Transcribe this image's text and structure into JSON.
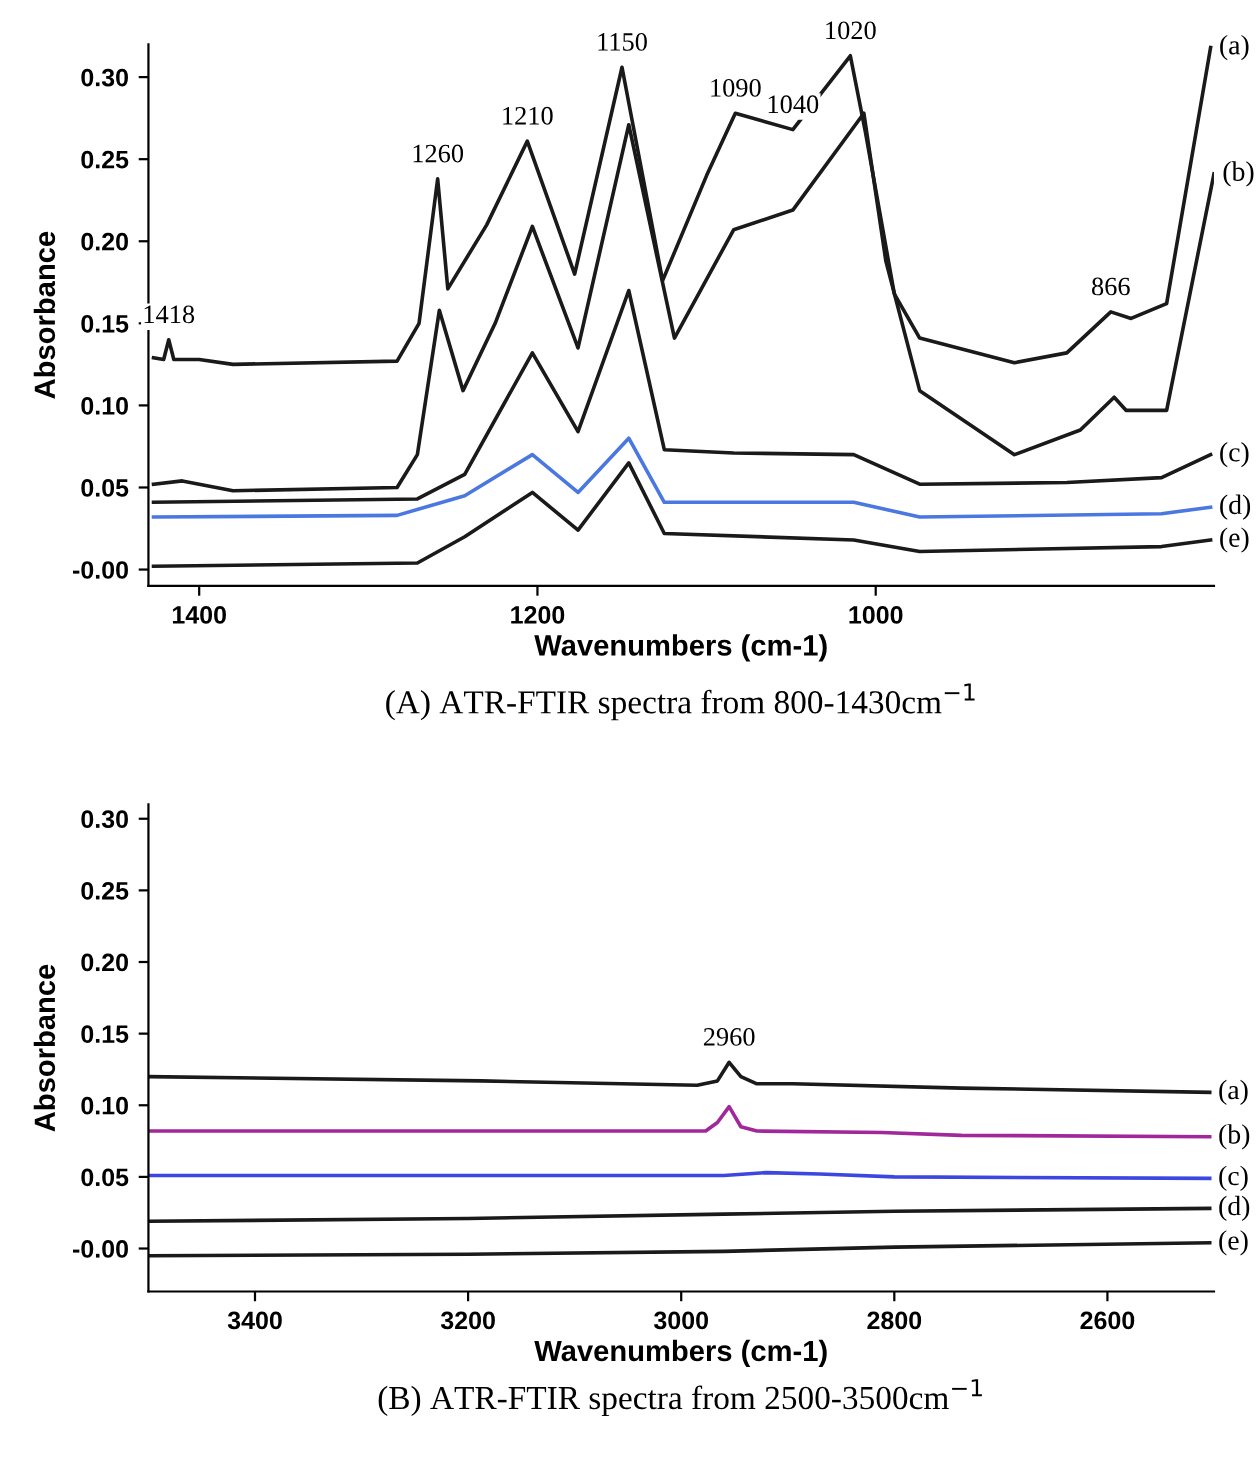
{
  "chart_data": [
    {
      "type": "line",
      "xlabel": "Wavenumbers (cm-1)",
      "ylabel": "Absorbance",
      "title": "(A) ATR-FTIR spectra from 800-1430cm$^{−1}$",
      "xlim": [
        1430,
        800
      ],
      "ylim": [
        -0.01,
        0.32
      ],
      "xticks": [
        1400,
        1200,
        1000
      ],
      "yticks": [
        {
          "value": 0,
          "label": "-0.00"
        },
        {
          "value": 0.05,
          "label": "0.05"
        },
        {
          "value": 0.1,
          "label": "0.10"
        },
        {
          "value": 0.15,
          "label": "0.15"
        },
        {
          "value": 0.2,
          "label": "0.20"
        },
        {
          "value": 0.25,
          "label": "0.25"
        },
        {
          "value": 0.3,
          "label": "0.30"
        }
      ],
      "grid": false,
      "legend": false,
      "series": [
        {
          "name": "(a)",
          "color": "#1a1a1a",
          "x": [
            1427,
            1421,
            1418,
            1415,
            1400,
            1380,
            1283,
            1270,
            1259,
            1253,
            1230,
            1206,
            1178,
            1150,
            1126,
            1100,
            1083,
            1049,
            1015,
            1006,
            989,
            974,
            918,
            887,
            861,
            849,
            828,
            802
          ],
          "values": [
            0.129,
            0.128,
            0.14,
            0.128,
            0.128,
            0.125,
            0.127,
            0.15,
            0.238,
            0.171,
            0.21,
            0.261,
            0.18,
            0.306,
            0.176,
            0.24,
            0.278,
            0.268,
            0.313,
            0.266,
            0.168,
            0.141,
            0.126,
            0.132,
            0.157,
            0.153,
            0.162,
            0.318
          ]
        },
        {
          "name": "(b)",
          "color": "#1a1a1a",
          "x": [
            1427,
            1410,
            1380,
            1283,
            1271,
            1258,
            1244,
            1225,
            1203,
            1176,
            1146,
            1119,
            1084,
            1049,
            1007,
            994,
            974,
            918,
            879,
            859,
            852,
            828,
            800
          ],
          "values": [
            0.052,
            0.054,
            0.048,
            0.05,
            0.07,
            0.158,
            0.109,
            0.15,
            0.209,
            0.135,
            0.271,
            0.141,
            0.207,
            0.219,
            0.278,
            0.188,
            0.109,
            0.07,
            0.085,
            0.105,
            0.097,
            0.097,
            0.241
          ]
        },
        {
          "name": "(c)",
          "color": "#1a1a1a",
          "x": [
            1427,
            1271,
            1243,
            1203,
            1176,
            1146,
            1125,
            1084,
            1013,
            974,
            887,
            831,
            802
          ],
          "values": [
            0.041,
            0.043,
            0.058,
            0.132,
            0.084,
            0.17,
            0.073,
            0.071,
            0.07,
            0.052,
            0.053,
            0.056,
            0.07
          ]
        },
        {
          "name": "(d)",
          "color": "#4a78e0",
          "x": [
            1427,
            1283,
            1243,
            1203,
            1176,
            1146,
            1125,
            1013,
            974,
            831,
            802
          ],
          "values": [
            0.032,
            0.033,
            0.045,
            0.07,
            0.047,
            0.08,
            0.041,
            0.041,
            0.032,
            0.034,
            0.038
          ]
        },
        {
          "name": "(e)",
          "color": "#1a1a1a",
          "x": [
            1427,
            1271,
            1243,
            1203,
            1176,
            1146,
            1125,
            1013,
            974,
            831,
            802
          ],
          "values": [
            0.002,
            0.004,
            0.02,
            0.047,
            0.024,
            0.065,
            0.022,
            0.018,
            0.011,
            0.014,
            0.018
          ]
        }
      ],
      "annotations": [
        {
          "text": "1418",
          "x": 1418,
          "y": 0.14
        },
        {
          "text": "1260",
          "x": 1259,
          "y": 0.238
        },
        {
          "text": "1210",
          "x": 1206,
          "y": 0.261
        },
        {
          "text": "1150",
          "x": 1150,
          "y": 0.306
        },
        {
          "text": "1090",
          "x": 1083,
          "y": 0.278
        },
        {
          "text": "1040",
          "x": 1049,
          "y": 0.268
        },
        {
          "text": "1020",
          "x": 1015,
          "y": 0.313
        },
        {
          "text": "866",
          "x": 861,
          "y": 0.157
        }
      ]
    },
    {
      "type": "line",
      "xlabel": "Wavenumbers (cm-1)",
      "ylabel": "Absorbance",
      "title": "(B) ATR-FTIR spectra from 2500-3500cm$^{−1}$",
      "xlim": [
        3500,
        2500
      ],
      "ylim": [
        -0.03,
        0.31
      ],
      "xticks": [
        3400,
        3200,
        3000,
        2800,
        2600
      ],
      "yticks": [
        {
          "value": 0,
          "label": "-0.00"
        },
        {
          "value": 0.05,
          "label": "0.05"
        },
        {
          "value": 0.1,
          "label": "0.10"
        },
        {
          "value": 0.15,
          "label": "0.15"
        },
        {
          "value": 0.2,
          "label": "0.20"
        },
        {
          "value": 0.25,
          "label": "0.25"
        },
        {
          "value": 0.3,
          "label": "0.30"
        }
      ],
      "grid": false,
      "legend": false,
      "series": [
        {
          "name": "(a)",
          "color": "#1a1a1a",
          "x": [
            3500,
            3188,
            2985,
            2966,
            2955,
            2944,
            2929,
            2895,
            2737,
            2504
          ],
          "values": [
            0.12,
            0.117,
            0.114,
            0.117,
            0.13,
            0.12,
            0.115,
            0.115,
            0.112,
            0.109
          ]
        },
        {
          "name": "(b)",
          "color": "#a0289a",
          "x": [
            3500,
            3188,
            2977,
            2966,
            2955,
            2944,
            2929,
            2812,
            2737,
            2504
          ],
          "values": [
            0.082,
            0.082,
            0.082,
            0.088,
            0.099,
            0.085,
            0.082,
            0.081,
            0.079,
            0.078
          ]
        },
        {
          "name": "(c)",
          "color": "#3c46e0",
          "x": [
            3500,
            3100,
            2960,
            2920,
            2870,
            2800,
            2504
          ],
          "values": [
            0.051,
            0.051,
            0.051,
            0.053,
            0.052,
            0.05,
            0.049
          ]
        },
        {
          "name": "(d)",
          "color": "#1a1a1a",
          "x": [
            3500,
            3200,
            2960,
            2800,
            2504
          ],
          "values": [
            0.019,
            0.021,
            0.024,
            0.026,
            0.028
          ]
        },
        {
          "name": "(e)",
          "color": "#1a1a1a",
          "x": [
            3500,
            3200,
            2960,
            2800,
            2504
          ],
          "values": [
            -0.005,
            -0.004,
            -0.002,
            0.001,
            0.004
          ]
        }
      ],
      "annotations": [
        {
          "text": "2960",
          "x": 2955,
          "y": 0.13
        }
      ]
    }
  ]
}
